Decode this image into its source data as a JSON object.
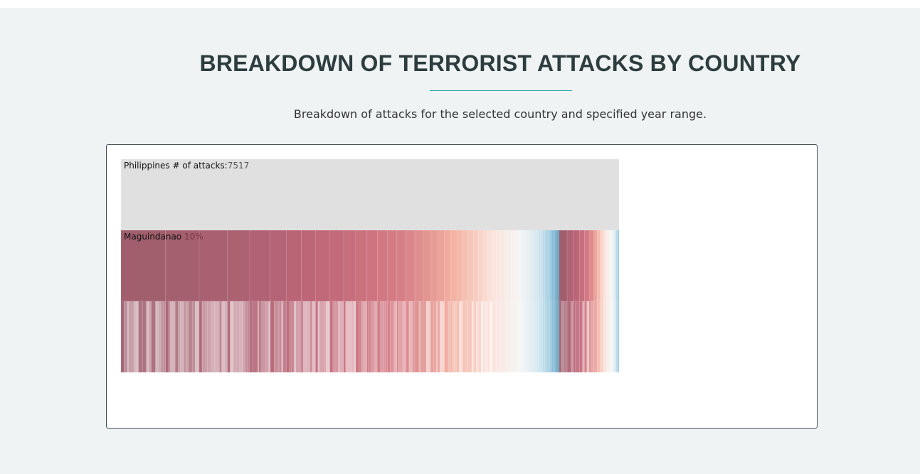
{
  "header": {
    "title": "BREAKDOWN OF TERRORIST ATTACKS BY COUNTRY",
    "subtitle": "Breakdown of attacks for the selected country and specified year range."
  },
  "chart_data": {
    "type": "icicle",
    "root": {
      "name": "Philippines",
      "metric_label": "# of attacks:",
      "value": "7517"
    },
    "highlighted_child": {
      "name": "Maguindanao",
      "share": "10%"
    },
    "colors": {
      "root_fill": "#e0e0e0",
      "scale": [
        "#a15f6e",
        "#bf6678",
        "#d67d85",
        "#f3b3a3",
        "#fbe3dc",
        "#f5f5f5",
        "#d3e7f0",
        "#93c5de",
        "#4c8fb3"
      ]
    },
    "level1_shares": [
      10,
      7.5,
      6.3,
      5,
      4.6,
      3.6,
      3.3,
      3.2,
      3.2,
      3.1,
      2.7,
      2.5,
      2.3,
      2.3,
      2.1,
      2,
      2,
      1.9,
      1.6,
      1.6,
      1.5,
      1.4,
      1.4,
      1.3,
      1.2,
      1.2,
      1.1,
      1.1,
      1,
      1,
      0.9,
      0.9,
      0.9,
      0.8,
      0.8,
      0.8,
      0.7,
      0.7,
      0.6,
      0.6,
      0.6,
      0.6,
      0.5,
      0.5,
      0.5,
      0.5,
      0.4,
      0.4,
      0.4,
      0.4,
      0.3,
      0.3,
      0.3,
      0.3,
      0.3,
      0.2,
      0.2,
      0.2,
      0.2,
      0.2
    ],
    "level1_tail_shares": [
      0.5,
      0.4,
      0.4,
      0.3,
      0.3,
      0.3,
      0.2,
      0.2,
      0.2,
      0.2,
      0.2,
      0.2,
      0.1,
      0.1,
      0.1,
      0.1
    ]
  }
}
